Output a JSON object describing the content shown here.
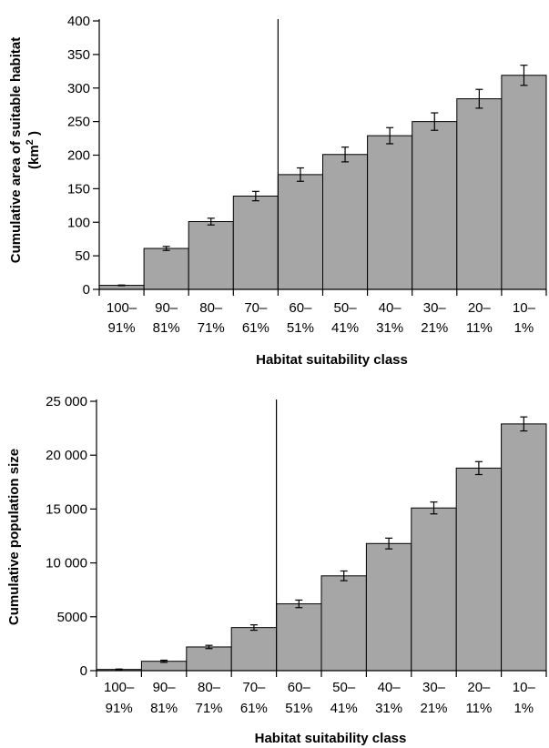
{
  "chart_data": [
    {
      "type": "bar",
      "categories": [
        [
          "100–",
          "91%"
        ],
        [
          "90–",
          "81%"
        ],
        [
          "80–",
          "71%"
        ],
        [
          "70–",
          "61%"
        ],
        [
          "60–",
          "51%"
        ],
        [
          "50–",
          "41%"
        ],
        [
          "40–",
          "31%"
        ],
        [
          "30–",
          "21%"
        ],
        [
          "20–",
          "11%"
        ],
        [
          "10–",
          "1%"
        ]
      ],
      "values": [
        6,
        61,
        101,
        139,
        171,
        201,
        229,
        250,
        284,
        319
      ],
      "errors": [
        0.5,
        3,
        5,
        7,
        10,
        11,
        12,
        13,
        14,
        15
      ],
      "ylim": [
        0,
        400
      ],
      "yticks": [
        0,
        50,
        100,
        150,
        200,
        250,
        300,
        350,
        400
      ],
      "ytick_labels": [
        "0",
        "50",
        "100",
        "150",
        "200",
        "250",
        "300",
        "350",
        "400"
      ],
      "ylabel_line1": "Cumulative area of suitable habitat",
      "ylabel_line2_pre": "(km",
      "ylabel_line2_sup": "2",
      "ylabel_line2_post": ")",
      "xlabel": "Habitat suitability class",
      "divider_after_category": 4,
      "bar_color": "#a6a6a6",
      "grid": false
    },
    {
      "type": "bar",
      "categories": [
        [
          "100–",
          "91%"
        ],
        [
          "90–",
          "81%"
        ],
        [
          "80–",
          "71%"
        ],
        [
          "70–",
          "61%"
        ],
        [
          "60–",
          "51%"
        ],
        [
          "50–",
          "41%"
        ],
        [
          "40–",
          "31%"
        ],
        [
          "30–",
          "21%"
        ],
        [
          "20–",
          "11%"
        ],
        [
          "10–",
          "1%"
        ]
      ],
      "values": [
        110,
        870,
        2200,
        4000,
        6200,
        8800,
        11800,
        15100,
        18800,
        22900
      ],
      "errors": [
        40,
        100,
        150,
        250,
        350,
        450,
        500,
        550,
        600,
        650
      ],
      "ylim": [
        0,
        25000
      ],
      "yticks": [
        0,
        5000,
        10000,
        15000,
        20000,
        25000
      ],
      "ytick_labels": [
        "0",
        "5000",
        "10 000",
        "15 000",
        "20 000",
        "25 000"
      ],
      "ylabel": "Cumulative population size",
      "xlabel": "Habitat suitability class",
      "divider_after_category": 4,
      "bar_color": "#a6a6a6",
      "grid": false
    }
  ]
}
